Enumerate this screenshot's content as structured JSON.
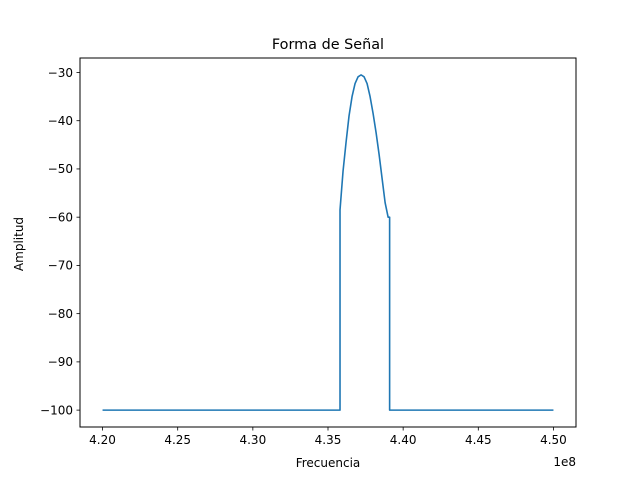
{
  "chart_data": {
    "type": "line",
    "title": "Forma de Señal",
    "xlabel": "Frecuencia",
    "ylabel": "Amplitud",
    "x_offset_text": "1e8",
    "xlim": [
      4.185,
      4.515
    ],
    "ylim": [
      -103.5,
      -27.0
    ],
    "xticks": [
      4.2,
      4.25,
      4.3,
      4.35,
      4.4,
      4.45,
      4.5
    ],
    "xtick_labels": [
      "4.20",
      "4.25",
      "4.30",
      "4.35",
      "4.40",
      "4.45",
      "4.50"
    ],
    "yticks": [
      -100,
      -90,
      -80,
      -70,
      -60,
      -50,
      -40,
      -30
    ],
    "ytick_labels": [
      "−100",
      "−90",
      "−80",
      "−70",
      "−60",
      "−50",
      "−40",
      "−30"
    ],
    "grid": false,
    "color": "#1f77b4",
    "series": [
      {
        "x": [
          4.2,
          4.358,
          4.358,
          4.36,
          4.362,
          4.364,
          4.366,
          4.368,
          4.37,
          4.372,
          4.374,
          4.376,
          4.378,
          4.38,
          4.382,
          4.384,
          4.386,
          4.388,
          4.39,
          4.391,
          4.391,
          4.5
        ],
        "y": [
          -100,
          -100,
          -58.5,
          -50.5,
          -44.5,
          -39.0,
          -35.0,
          -32.3,
          -30.9,
          -30.5,
          -30.9,
          -32.3,
          -35.0,
          -38.5,
          -42.5,
          -47.0,
          -52.0,
          -57.0,
          -60.0,
          -60.0,
          -100,
          -100
        ]
      }
    ]
  }
}
